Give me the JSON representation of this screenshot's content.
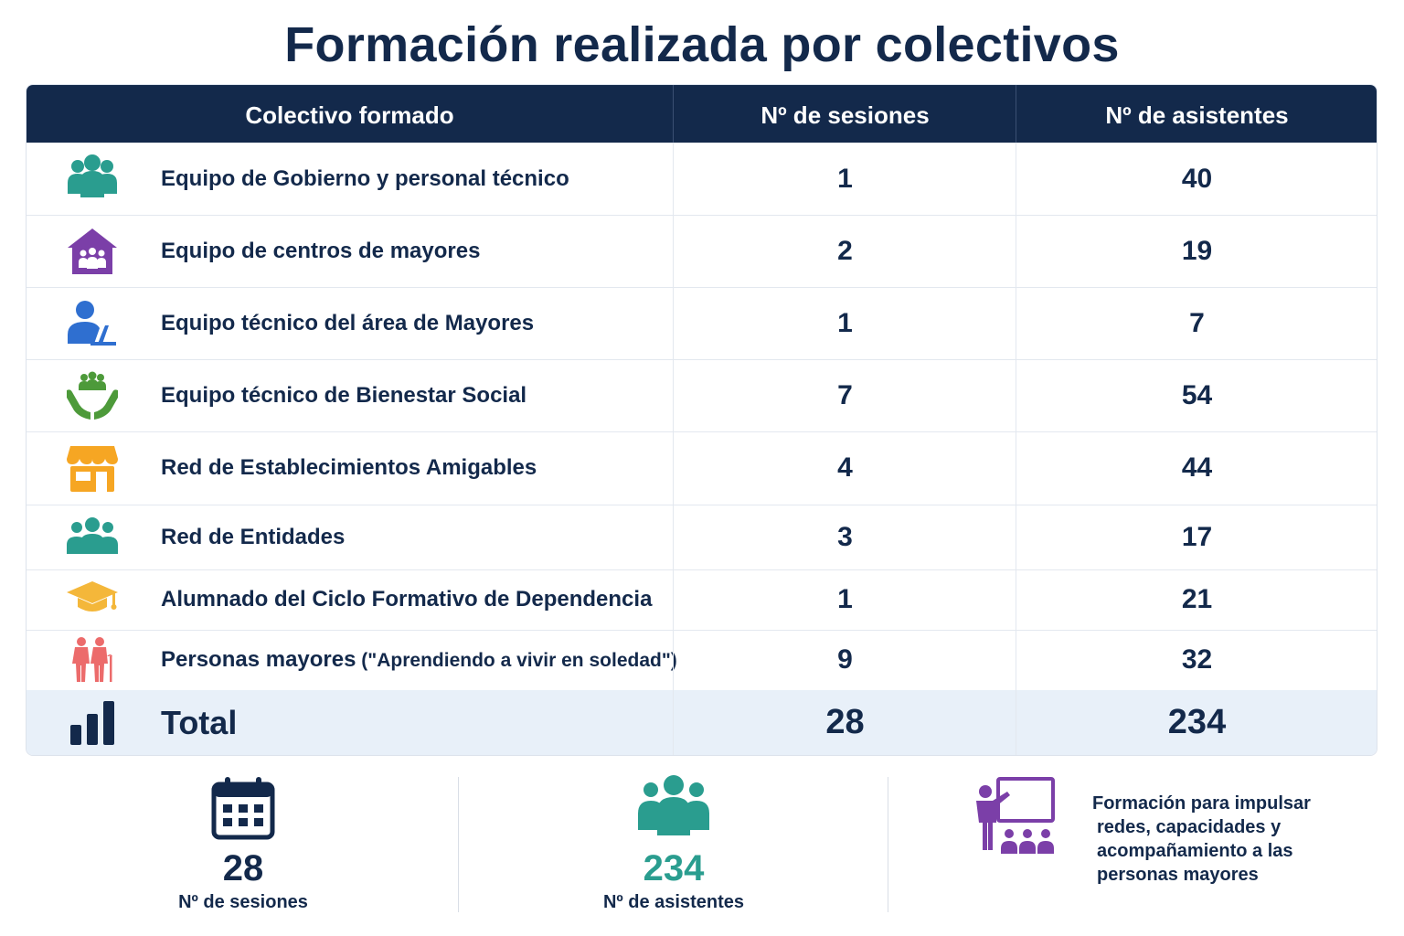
{
  "title": "Formación realizada por colectivos",
  "table": {
    "headers": {
      "group": "Colectivo formado",
      "sessions": "Nº de sesiones",
      "attendees": "Nº de asistentes"
    },
    "rows": [
      {
        "icon": "team-icon",
        "label": "Equipo de Gobierno y personal técnico",
        "note": "",
        "sessions": "1",
        "attendees": "40"
      },
      {
        "icon": "senior-center-house-icon",
        "label": "Equipo de centros de mayores",
        "note": "",
        "sessions": "2",
        "attendees": "19"
      },
      {
        "icon": "technician-laptop-icon",
        "label": "Equipo técnico del área de Mayores",
        "note": "",
        "sessions": "1",
        "attendees": "7"
      },
      {
        "icon": "caring-hands-icon",
        "label": "Equipo técnico de Bienestar Social",
        "note": "",
        "sessions": "7",
        "attendees": "54"
      },
      {
        "icon": "storefront-icon",
        "label": "Red de Establecimientos Amigables",
        "note": "",
        "sessions": "4",
        "attendees": "44"
      },
      {
        "icon": "group-icon",
        "label": "Red de Entidades",
        "note": "",
        "sessions": "3",
        "attendees": "17"
      },
      {
        "icon": "graduation-cap-icon",
        "label": "Alumnado del Ciclo Formativo de Dependencia",
        "note": "",
        "sessions": "1",
        "attendees": "21"
      },
      {
        "icon": "elderly-couple-icon",
        "label": "Personas mayores",
        "note": " (\"Aprendiendo a vivir en soledad\")",
        "sessions": "9",
        "attendees": "32"
      }
    ],
    "total": {
      "icon": "bar-chart-icon",
      "label": "Total",
      "sessions": "28",
      "attendees": "234"
    }
  },
  "summary": {
    "sessions": {
      "icon": "calendar-icon",
      "value": "28",
      "caption": "Nº de sesiones"
    },
    "attendees": {
      "icon": "people-icon",
      "value": "234",
      "caption": "Nº de asistentes"
    },
    "message": {
      "icon": "trainer-presentation-icon",
      "lines": [
        "Formación para impulsar",
        "redes, capacidades y",
        "acompañamiento a las",
        "personas mayores"
      ]
    }
  },
  "colors": {
    "navy": "#13294b",
    "teal": "#2a9d8f",
    "purple": "#7b3fa8",
    "blue": "#2f6fd0",
    "green": "#4d9a3a",
    "orange": "#f6a623",
    "yellow": "#f4b73a",
    "coral": "#ec6b6b",
    "total_bg": "#e8f0f9"
  }
}
